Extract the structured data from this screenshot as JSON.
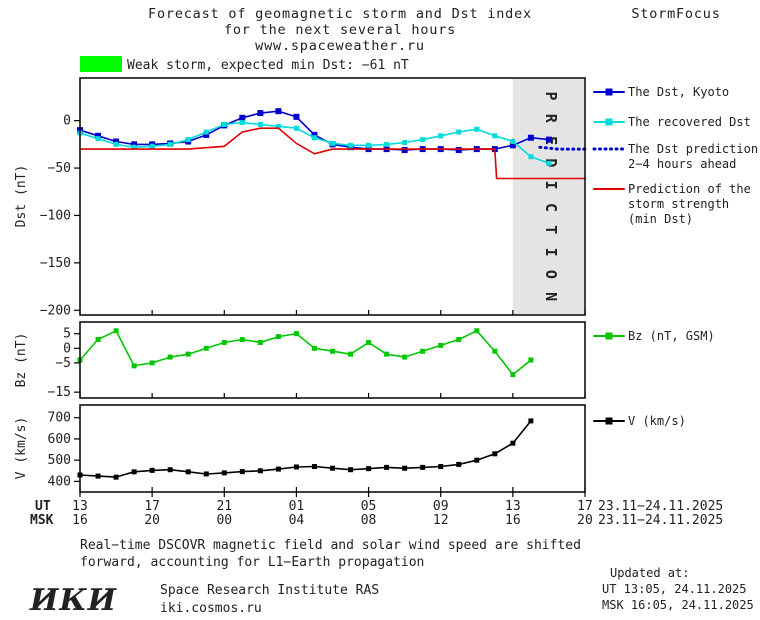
{
  "header": {
    "title_line1": "Forecast of geomagnetic storm and Dst index",
    "title_line2": "for the next several hours",
    "title_line3": "www.spaceweather.ru",
    "brand": "StormFocus"
  },
  "storm_banner": {
    "color": "#00ff00",
    "text": "Weak storm, expected min Dst: −61 nT"
  },
  "prediction_label": "PREDICTION",
  "chart_data": [
    {
      "type": "line",
      "panel": "dst",
      "ylabel": "Dst (nT)",
      "ylim": [
        -205,
        45
      ],
      "ytick_values": [
        0,
        -50,
        -100,
        -150,
        -200
      ],
      "ytick_labels": [
        "0",
        "−50",
        "−100",
        "−150",
        "−200"
      ],
      "x_unit": "hours from 13 UT 23.11.2025",
      "xlim_hours": [
        0,
        28
      ],
      "prediction_region_start_hour": 24,
      "series": [
        {
          "name": "The Dst, Kyoto",
          "color": "#0000cd",
          "style": "solid-square",
          "marker_size": 6,
          "x": [
            0,
            1,
            2,
            3,
            4,
            5,
            6,
            7,
            8,
            9,
            10,
            11,
            12,
            13,
            14,
            15,
            16,
            17,
            18,
            19,
            20,
            21,
            22,
            23,
            24,
            25,
            26
          ],
          "values": [
            -10,
            -16,
            -22,
            -25,
            -25,
            -24,
            -22,
            -15,
            -5,
            3,
            8,
            10,
            4,
            -15,
            -25,
            -28,
            -30,
            -30,
            -31,
            -30,
            -30,
            -31,
            -30,
            -30,
            -26,
            -18,
            -20
          ]
        },
        {
          "name": "The recovered Dst",
          "color": "#00dcdc",
          "style": "solid-square",
          "marker_size": 5,
          "x": [
            0,
            1,
            2,
            3,
            4,
            5,
            6,
            7,
            8,
            9,
            10,
            11,
            12,
            13,
            14,
            15,
            16,
            17,
            18,
            19,
            20,
            21,
            22,
            23,
            24,
            25,
            26
          ],
          "values": [
            -13,
            -19,
            -25,
            -28,
            -27,
            -25,
            -20,
            -12,
            -4,
            -2,
            -4,
            -6,
            -8,
            -18,
            -24,
            -26,
            -26,
            -25,
            -23,
            -20,
            -16,
            -12,
            -9,
            -16,
            -22,
            -38,
            -45
          ]
        },
        {
          "name": "The Dst prediction 2−4 hours ahead",
          "color": "#0000cd",
          "style": "dotted",
          "x": [
            25.5,
            26,
            26.5,
            27,
            27.5,
            28
          ],
          "values": [
            -28,
            -29,
            -30,
            -30,
            -30,
            -30
          ]
        },
        {
          "name": "Prediction of the storm strength (min Dst)",
          "color": "#e00000",
          "style": "solid",
          "x": [
            0,
            6,
            8,
            9,
            10,
            11,
            12,
            13,
            14,
            22.5,
            23,
            23.1,
            28
          ],
          "values": [
            -30,
            -30,
            -27,
            -12,
            -8,
            -8,
            -24,
            -35,
            -30,
            -30,
            -30,
            -61,
            -61
          ]
        }
      ]
    },
    {
      "type": "line",
      "panel": "bz",
      "ylabel": "Bz (nT)",
      "ylim": [
        -17,
        9
      ],
      "ytick_values": [
        5,
        0,
        -5,
        -15
      ],
      "ytick_labels": [
        "5",
        "0",
        "−5",
        "−15"
      ],
      "x_unit": "hours from 13 UT 23.11.2025",
      "xlim_hours": [
        0,
        28
      ],
      "series": [
        {
          "name": "Bz (nT, GSM)",
          "color": "#00c800",
          "style": "solid-square",
          "marker_size": 5,
          "x": [
            0,
            1,
            2,
            3,
            4,
            5,
            6,
            7,
            8,
            9,
            10,
            11,
            12,
            13,
            14,
            15,
            16,
            17,
            18,
            19,
            20,
            21,
            22,
            23,
            24,
            25
          ],
          "values": [
            -4,
            3,
            6,
            -6,
            -5,
            -3,
            -2,
            0,
            2,
            3,
            2,
            4,
            5,
            0,
            -1,
            -2,
            2,
            -2,
            -3,
            -1,
            1,
            3,
            6,
            -1,
            -9,
            -4
          ]
        }
      ]
    },
    {
      "type": "line",
      "panel": "v",
      "ylabel": "V (km/s)",
      "ylim": [
        350,
        760
      ],
      "ytick_values": [
        700,
        600,
        500,
        400
      ],
      "ytick_labels": [
        "700",
        "600",
        "500",
        "400"
      ],
      "x_unit": "hours from 13 UT 23.11.2025",
      "xlim_hours": [
        0,
        28
      ],
      "series": [
        {
          "name": "V (km/s)",
          "color": "#000000",
          "style": "solid-square",
          "marker_size": 5,
          "x": [
            0,
            1,
            2,
            3,
            4,
            5,
            6,
            7,
            8,
            9,
            10,
            11,
            12,
            13,
            14,
            15,
            16,
            17,
            18,
            19,
            20,
            21,
            22,
            23,
            24,
            25
          ],
          "values": [
            430,
            425,
            420,
            445,
            452,
            455,
            445,
            435,
            440,
            446,
            450,
            458,
            468,
            470,
            462,
            455,
            460,
            466,
            462,
            466,
            470,
            480,
            500,
            530,
            580,
            685
          ]
        }
      ]
    }
  ],
  "xaxis": {
    "tick_hours": [
      0,
      4,
      8,
      12,
      16,
      20,
      24,
      28
    ],
    "ut_label": "UT",
    "msk_label": "MSK",
    "ut_values": [
      "13",
      "17",
      "21",
      "01",
      "05",
      "09",
      "13",
      "17"
    ],
    "msk_values": [
      "16",
      "20",
      "00",
      "04",
      "08",
      "12",
      "16",
      "20"
    ],
    "ut_date_range": "23.11−24.11.2025",
    "msk_date_range": "23.11−24.11.2025"
  },
  "legend_dst": {
    "items": [
      {
        "lines": [
          "The Dst, Kyoto"
        ],
        "color": "#0000cd",
        "style": "solid-square"
      },
      {
        "lines": [
          "The recovered Dst"
        ],
        "color": "#00dcdc",
        "style": "solid-square"
      },
      {
        "lines": [
          "The Dst prediction",
          "2−4 hours ahead"
        ],
        "color": "#0000cd",
        "style": "dotted"
      },
      {
        "lines": [
          "Prediction of the",
          "storm strength",
          "(min Dst)"
        ],
        "color": "#e00000",
        "style": "solid"
      }
    ]
  },
  "legend_bz": {
    "items": [
      {
        "lines": [
          "Bz (nT, GSM)"
        ],
        "color": "#00c800",
        "style": "solid-square"
      }
    ]
  },
  "legend_v": {
    "items": [
      {
        "lines": [
          "V (km/s)"
        ],
        "color": "#000000",
        "style": "solid-square"
      }
    ]
  },
  "footer": {
    "line1": "Real−time DSCOVR magnetic field and solar wind speed are shifted",
    "line2": "forward, accounting for L1−Earth propagation"
  },
  "updated": {
    "label": "Updated at:",
    "ut": "UT  13:05, 24.11.2025",
    "msk": "MSK 16:05, 24.11.2025"
  },
  "org": {
    "logo": "ИКИ",
    "name": "Space Research Institute RAS",
    "site": "iki.cosmos.ru"
  }
}
